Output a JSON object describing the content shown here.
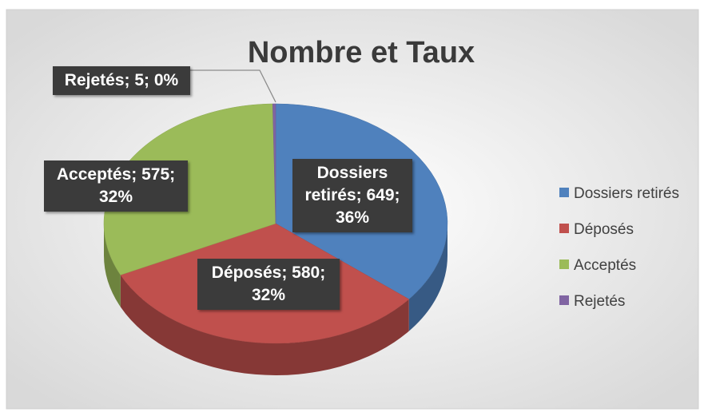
{
  "chart_data": {
    "type": "pie",
    "title": "Nombre et Taux",
    "categories": [
      "Dossiers retirés",
      "Déposés",
      "Acceptés",
      "Rejetés"
    ],
    "values": [
      649,
      580,
      575,
      5
    ],
    "value_labels": [
      "Dossiers retirés; 649; 36%",
      "Déposés; 580; 32%",
      "Acceptés; 575; 32%",
      "Rejetés; 5; 0%"
    ],
    "colors": [
      "#4f81bd",
      "#c0504d",
      "#9bbb59",
      "#8064a2"
    ],
    "legend": "right"
  }
}
